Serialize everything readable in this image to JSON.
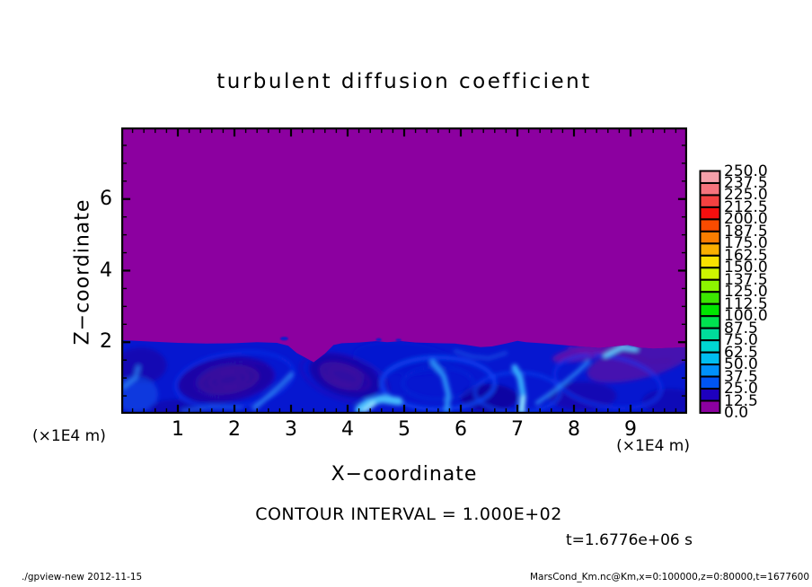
{
  "title": "turbulent diffusion coefficient",
  "axes": {
    "x": {
      "label": "X−coordinate",
      "unit": "(×1E4 m)",
      "range": [
        0,
        10
      ],
      "major_ticks": [
        1,
        2,
        3,
        4,
        5,
        6,
        7,
        8,
        9
      ],
      "minor_step": 0.2
    },
    "z": {
      "label": "Z−coordinate",
      "unit": "(×1E4 m)",
      "range": [
        0,
        8
      ],
      "major_ticks": [
        2,
        4,
        6
      ],
      "minor_step": 0.5
    }
  },
  "annotations": {
    "contour_interval": "CONTOUR INTERVAL = 1.000E+02",
    "time": "t=1.6776e+06 s"
  },
  "footer": {
    "left": "./gpview-new  2012-11-15",
    "right": "MarsCond_Km.nc@Km,x=0:100000,z=0:80000,t=1677600"
  },
  "colorbar": {
    "labels_top_to_bottom": [
      "250.0",
      "237.5",
      "225.0",
      "212.5",
      "200.0",
      "187.5",
      "175.0",
      "162.5",
      "150.0",
      "137.5",
      "125.0",
      "112.5",
      "100.0",
      "87.5",
      "75.0",
      "62.5",
      "50.0",
      "37.5",
      "25.0",
      "12.5",
      "0.0"
    ],
    "colors_top_to_bottom": [
      "#F5A0AA",
      "#F5737D",
      "#F54141",
      "#F50F0F",
      "#FA4B00",
      "#FA7D00",
      "#FAAF00",
      "#FAE100",
      "#CDF500",
      "#8CF500",
      "#3CE600",
      "#00E600",
      "#00E150",
      "#00DC9B",
      "#00D7D2",
      "#00BEF0",
      "#0091FA",
      "#0055F5",
      "#1E00BE",
      "#8C00A0"
    ]
  },
  "chart_data": {
    "type": "heatmap",
    "title": "turbulent diffusion coefficient",
    "xlabel": "X−coordinate",
    "ylabel": "Z−coordinate",
    "x_range": [
      0,
      100000
    ],
    "z_range": [
      0,
      80000
    ],
    "time_seconds": 1677600,
    "contour_interval": 100.0,
    "levels": [
      0,
      12.5,
      25,
      37.5,
      50,
      62.5,
      75,
      87.5,
      100,
      112.5,
      125,
      137.5,
      150,
      162.5,
      175,
      187.5,
      200,
      212.5,
      225,
      237.5,
      250
    ],
    "background_color": "#8C00A0",
    "boundary_layer": {
      "base_color": "#0617D0",
      "top_z_approx": 2.0,
      "interface": [
        [
          0,
          2.06
        ],
        [
          0.5,
          2.02
        ],
        [
          1.0,
          1.98
        ],
        [
          1.5,
          1.96
        ],
        [
          2.0,
          1.97
        ],
        [
          2.4,
          2.0
        ],
        [
          2.75,
          1.98
        ],
        [
          2.95,
          1.9
        ],
        [
          3.1,
          1.7
        ],
        [
          3.4,
          1.44
        ],
        [
          3.6,
          1.68
        ],
        [
          3.75,
          1.92
        ],
        [
          3.9,
          1.97
        ],
        [
          4.2,
          1.99
        ],
        [
          4.5,
          2.03
        ],
        [
          4.7,
          2.0
        ],
        [
          4.95,
          2.03
        ],
        [
          5.2,
          1.99
        ],
        [
          5.6,
          1.97
        ],
        [
          5.9,
          1.96
        ],
        [
          6.1,
          1.92
        ],
        [
          6.35,
          1.86
        ],
        [
          6.55,
          1.88
        ],
        [
          6.8,
          1.96
        ],
        [
          7.0,
          2.04
        ],
        [
          7.15,
          2.0
        ],
        [
          7.5,
          1.96
        ],
        [
          7.8,
          1.92
        ],
        [
          8.1,
          1.88
        ],
        [
          8.45,
          1.84
        ],
        [
          8.7,
          1.88
        ],
        [
          8.95,
          1.92
        ],
        [
          9.15,
          1.85
        ],
        [
          9.4,
          1.82
        ],
        [
          9.7,
          1.84
        ],
        [
          10,
          1.86
        ]
      ]
    },
    "features": {
      "patches": [
        {
          "x": 1.85,
          "z": 0.95,
          "rx": 0.85,
          "rz": 0.62,
          "rot": -8,
          "c": "#1C06A0",
          "o": 0.85
        },
        {
          "x": 1.9,
          "z": 0.95,
          "rx": 0.55,
          "rz": 0.4,
          "rot": -8,
          "c": "#35079E",
          "o": 0.8
        },
        {
          "x": 3.95,
          "z": 1.05,
          "rx": 0.65,
          "rz": 0.55,
          "rot": 18,
          "c": "#1C06A0",
          "o": 0.8
        },
        {
          "x": 3.9,
          "z": 1.05,
          "rx": 0.4,
          "rz": 0.35,
          "rot": 18,
          "c": "#3A0AA0",
          "o": 0.7
        },
        {
          "x": 6.5,
          "z": 0.45,
          "rx": 0.5,
          "rz": 0.38,
          "rot": 0,
          "c": "#12039B",
          "o": 0.85
        },
        {
          "x": 8.15,
          "z": 0.5,
          "rx": 0.6,
          "rz": 0.4,
          "rot": 0,
          "c": "#1A05A2",
          "o": 0.6
        },
        {
          "x": 9.2,
          "z": 1.5,
          "rx": 1.0,
          "rz": 0.5,
          "rot": -15,
          "c": "#5C12A6",
          "o": 0.75
        },
        {
          "x": 8.3,
          "z": 1.75,
          "rx": 0.7,
          "rz": 0.22,
          "rot": -12,
          "c": "#6E0DA8",
          "o": 0.8
        },
        {
          "x": 0.35,
          "z": 1.35,
          "rx": 0.45,
          "rz": 0.5,
          "rot": 0,
          "c": "#1C06A0",
          "o": 0.6
        },
        {
          "x": 0.25,
          "z": 0.55,
          "rx": 0.4,
          "rz": 0.5,
          "rot": 0,
          "c": "#1050E8",
          "o": 0.6
        },
        {
          "x": 1.0,
          "z": 0.15,
          "rx": 0.5,
          "rz": 0.25,
          "rot": 0,
          "c": "#12039B",
          "o": 0.5
        },
        {
          "x": 9.7,
          "z": 0.35,
          "rx": 0.5,
          "rz": 0.35,
          "rot": 0,
          "c": "#1A05A2",
          "o": 0.55
        },
        {
          "x": 5.0,
          "z": 1.55,
          "rx": 0.9,
          "rz": 0.45,
          "rot": 5,
          "c": "#0A1ACF",
          "o": 0.5
        }
      ],
      "rings": [
        {
          "x": 2.0,
          "z": 0.95,
          "rx": 1.05,
          "rz": 0.75,
          "rot": -8,
          "c": "#0D2FE8",
          "w": 3,
          "o": 0.9
        },
        {
          "x": 2.0,
          "z": 0.95,
          "rx": 0.7,
          "rz": 0.5,
          "rot": -8,
          "c": "#2B0FB0",
          "w": 2.5,
          "o": 0.8
        },
        {
          "x": 1.9,
          "z": 0.95,
          "rx": 0.5,
          "rz": 0.33,
          "rot": -10,
          "c": "#50109B",
          "w": 1.5,
          "o": 0.9
        },
        {
          "x": 1.9,
          "z": 0.95,
          "rx": 0.34,
          "rz": 0.22,
          "rot": -10,
          "c": "#50109B",
          "w": 1.5,
          "o": 0.85
        },
        {
          "x": 1.9,
          "z": 0.95,
          "rx": 0.2,
          "rz": 0.12,
          "rot": -10,
          "c": "#50109B",
          "w": 1.5,
          "o": 0.8
        },
        {
          "x": 3.95,
          "z": 1.05,
          "rx": 0.45,
          "rz": 0.3,
          "rot": 20,
          "c": "#50109B",
          "w": 1.5,
          "o": 0.85
        },
        {
          "x": 3.95,
          "z": 1.05,
          "rx": 0.28,
          "rz": 0.18,
          "rot": 20,
          "c": "#50109B",
          "w": 1.5,
          "o": 0.8
        },
        {
          "x": 3.95,
          "z": 1.0,
          "rx": 0.8,
          "rz": 0.6,
          "rot": 18,
          "c": "#2B0FB0",
          "w": 2.5,
          "o": 0.7
        },
        {
          "x": 5.6,
          "z": 0.85,
          "rx": 1.0,
          "rz": 0.72,
          "rot": 0,
          "c": "#1148F5",
          "w": 4,
          "o": 0.9
        },
        {
          "x": 5.6,
          "z": 0.85,
          "rx": 0.62,
          "rz": 0.45,
          "rot": 0,
          "c": "#0A28D8",
          "w": 3,
          "o": 0.8
        },
        {
          "x": 7.0,
          "z": 0.6,
          "rx": 0.75,
          "rz": 0.55,
          "rot": 0,
          "c": "#1148F5",
          "w": 3,
          "o": 0.75
        },
        {
          "x": 8.6,
          "z": 0.9,
          "rx": 0.95,
          "rz": 0.7,
          "rot": 10,
          "c": "#0D2FE8",
          "w": 3.5,
          "o": 0.85
        }
      ],
      "streaks": [
        {
          "pts": [
            [
              4.2,
              0.12
            ],
            [
              4.35,
              0.3
            ],
            [
              4.6,
              0.42
            ],
            [
              4.9,
              0.35
            ]
          ],
          "c": "#49C3FF",
          "w": 9,
          "o": 0.95
        },
        {
          "pts": [
            [
              4.3,
              0.1
            ],
            [
              4.45,
              0.28
            ]
          ],
          "c": "#8FE4FF",
          "w": 6,
          "o": 0.9
        },
        {
          "pts": [
            [
              5.75,
              0.1
            ],
            [
              5.78,
              0.55
            ],
            [
              5.7,
              1.05
            ],
            [
              5.5,
              1.45
            ]
          ],
          "c": "#2F9BFA",
          "w": 6,
          "o": 0.9
        },
        {
          "pts": [
            [
              7.07,
              0.08
            ],
            [
              7.1,
              0.5
            ],
            [
              7.05,
              1.0
            ],
            [
              6.95,
              1.3
            ]
          ],
          "c": "#38B4FF",
          "w": 7,
          "o": 0.95
        },
        {
          "pts": [
            [
              7.08,
              0.08
            ],
            [
              7.1,
              0.45
            ]
          ],
          "c": "#A0ECFF",
          "w": 5,
          "o": 0.9
        },
        {
          "pts": [
            [
              7.35,
              0.3
            ],
            [
              7.7,
              0.7
            ],
            [
              8.05,
              1.15
            ],
            [
              8.25,
              1.45
            ]
          ],
          "c": "#2F9BFA",
          "w": 4,
          "o": 0.8
        },
        {
          "pts": [
            [
              8.55,
              1.62
            ],
            [
              8.85,
              1.85
            ],
            [
              9.1,
              1.8
            ]
          ],
          "c": "#65D8FF",
          "w": 4.5,
          "o": 0.95
        },
        {
          "pts": [
            [
              2.35,
              0.15
            ],
            [
              2.6,
              0.5
            ],
            [
              2.85,
              0.85
            ],
            [
              3.0,
              1.1
            ]
          ],
          "c": "#2F8BF5",
          "w": 5,
          "o": 0.8
        },
        {
          "pts": [
            [
              0.05,
              0.75
            ],
            [
              0.25,
              1.0
            ],
            [
              0.3,
              1.3
            ]
          ],
          "c": "#2F8BF5",
          "w": 5,
          "o": 0.7
        },
        {
          "pts": [
            [
              1.1,
              0.08
            ],
            [
              1.6,
              0.2
            ],
            [
              2.1,
              0.18
            ]
          ],
          "c": "#1E5CE8",
          "w": 5,
          "o": 0.7
        },
        {
          "pts": [
            [
              5.9,
              1.75
            ],
            [
              6.2,
              1.6
            ],
            [
              6.5,
              1.55
            ],
            [
              6.8,
              1.7
            ]
          ],
          "c": "#1E5CE8",
          "w": 3.5,
          "o": 0.7
        },
        {
          "pts": [
            [
              7.9,
              1.88
            ],
            [
              8.35,
              1.64
            ]
          ],
          "c": "#7A10A8",
          "w": 2.5,
          "o": 0.8
        },
        {
          "pts": [
            [
              8.1,
              1.9
            ],
            [
              8.55,
              1.68
            ]
          ],
          "c": "#7A10A8",
          "w": 2,
          "o": 0.7
        },
        {
          "pts": [
            [
              9.0,
              1.65
            ],
            [
              9.35,
              1.45
            ],
            [
              9.7,
              1.5
            ]
          ],
          "c": "#50109B",
          "w": 2,
          "o": 0.7
        }
      ],
      "specks": [
        {
          "x": 2.88,
          "z": 2.1,
          "rx": 0.07,
          "rz": 0.05,
          "c": "#0A1ACF"
        },
        {
          "x": 4.55,
          "z": 2.07,
          "rx": 0.05,
          "rz": 0.04,
          "c": "#0A1ACF"
        },
        {
          "x": 4.9,
          "z": 2.06,
          "rx": 0.05,
          "rz": 0.035,
          "c": "#0A1ACF"
        }
      ]
    }
  }
}
